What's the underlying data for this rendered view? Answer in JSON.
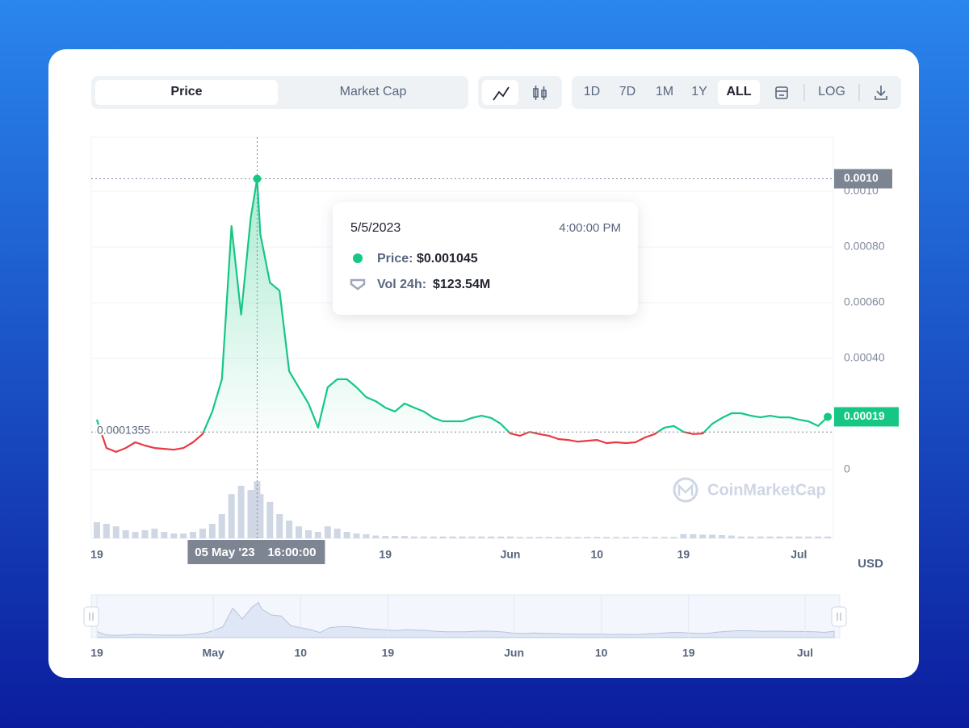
{
  "toolbar": {
    "tabs": [
      "Price",
      "Market Cap"
    ],
    "active_tab": 0,
    "ranges": [
      "1D",
      "7D",
      "1M",
      "1Y",
      "ALL"
    ],
    "active_range": 4,
    "log": "LOG"
  },
  "currency": "USD",
  "watermark": "CoinMarketCap",
  "chart_data": {
    "type": "line",
    "x": [
      "2023-04-19",
      "2023-04-20",
      "2023-04-21",
      "2023-04-22",
      "2023-04-23",
      "2023-04-24",
      "2023-04-25",
      "2023-04-26",
      "2023-04-27",
      "2023-04-28",
      "2023-04-29",
      "2023-04-30",
      "2023-05-01",
      "2023-05-02",
      "2023-05-03",
      "2023-05-04",
      "2023-05-05",
      "2023-05-05 16:00",
      "2023-05-06",
      "2023-05-07",
      "2023-05-08",
      "2023-05-09",
      "2023-05-10",
      "2023-05-11",
      "2023-05-12",
      "2023-05-13",
      "2023-05-14",
      "2023-05-15",
      "2023-05-16",
      "2023-05-17",
      "2023-05-18",
      "2023-05-19",
      "2023-05-20",
      "2023-05-21",
      "2023-05-22",
      "2023-05-23",
      "2023-05-24",
      "2023-05-25",
      "2023-05-26",
      "2023-05-27",
      "2023-05-28",
      "2023-05-29",
      "2023-05-30",
      "2023-05-31",
      "2023-06-01",
      "2023-06-02",
      "2023-06-03",
      "2023-06-04",
      "2023-06-05",
      "2023-06-06",
      "2023-06-07",
      "2023-06-08",
      "2023-06-09",
      "2023-06-10",
      "2023-06-11",
      "2023-06-12",
      "2023-06-13",
      "2023-06-14",
      "2023-06-15",
      "2023-06-16",
      "2023-06-17",
      "2023-06-18",
      "2023-06-19",
      "2023-06-20",
      "2023-06-21",
      "2023-06-22",
      "2023-06-23",
      "2023-06-24",
      "2023-06-25",
      "2023-06-26",
      "2023-06-27",
      "2023-06-28",
      "2023-06-29",
      "2023-06-30",
      "2023-07-01",
      "2023-07-02",
      "2023-07-03",
      "2023-07-04"
    ],
    "values": [
      0.00018,
      7.8e-05,
      6.4e-05,
      7.8e-05,
      9.86e-05,
      8.7e-05,
      7.8e-05,
      7.5e-05,
      7.2e-05,
      7.8e-05,
      9.86e-05,
      0.000128,
      0.000209,
      0.000325,
      0.000875,
      0.000557,
      0.000904,
      0.001045,
      0.000846,
      0.000672,
      0.000643,
      0.000354,
      0.000296,
      0.000238,
      0.000151,
      0.000296,
      0.000325,
      0.000325,
      0.000296,
      0.000261,
      0.000246,
      0.000223,
      0.000209,
      0.000238,
      0.000223,
      0.000209,
      0.000186,
      0.000174,
      0.000174,
      0.000174,
      0.000186,
      0.000194,
      0.000186,
      0.000165,
      0.00013,
      0.000122,
      0.000136,
      0.000128,
      0.000122,
      0.00011,
      0.000107,
      0.000101,
      0.000104,
      0.000107,
      9.57e-05,
      9.86e-05,
      9.57e-05,
      9.86e-05,
      0.000116,
      0.000128,
      0.000151,
      0.000157,
      0.000136,
      0.000128,
      0.00013,
      0.000165,
      0.000186,
      0.000203,
      0.000203,
      0.000194,
      0.000188,
      0.000194,
      0.000188,
      0.000188,
      0.00018,
      0.000174,
      0.000157,
      0.00019
    ],
    "volume": [
      35,
      31.5,
      26,
      17.5,
      14,
      17.5,
      21,
      14,
      10.5,
      10.5,
      14,
      21,
      31.5,
      52.5,
      96,
      114,
      105,
      123.54,
      96,
      79,
      52.5,
      38.5,
      26,
      17.5,
      14,
      26,
      21,
      14,
      10.5,
      8.8,
      6,
      5,
      5,
      5,
      4,
      4,
      4,
      4,
      4,
      4,
      4,
      4,
      4,
      4,
      4,
      3,
      3,
      3,
      3,
      3,
      3,
      3,
      3,
      3,
      3,
      3,
      3,
      3,
      3,
      3,
      3,
      3,
      9,
      9,
      8,
      8,
      7,
      6,
      4,
      4,
      4,
      4,
      4,
      4,
      4,
      4,
      4,
      4
    ],
    "up_color": "#16c784",
    "down_color": "#ea3943",
    "volume_color": "#cfd6e4",
    "baseline": 0.0001355,
    "xlim": [
      "2023-04-18 10:00",
      "2023-07-04 14:00"
    ],
    "ylim": [
      0,
      0.0012
    ],
    "y2lim": [
      0,
      140
    ],
    "yticks": [
      0,
      {
        "value": 0.0004,
        "label": "0.00040"
      },
      {
        "value": 0.0006,
        "label": "0.00060"
      },
      {
        "value": 0.0008,
        "label": "0.00080"
      },
      {
        "value": 0.001,
        "label": "0.0010"
      }
    ],
    "xticks": [
      {
        "value": "2023-04-19",
        "label": "19"
      },
      {
        "value": "2023-05-19",
        "label": "19"
      },
      {
        "value": "2023-06-01",
        "label": "Jun"
      },
      {
        "value": "2023-06-10",
        "label": "10"
      },
      {
        "value": "2023-06-19",
        "label": "19"
      },
      {
        "value": "2023-07-01",
        "label": "Jul"
      }
    ],
    "navigator_xticks": [
      {
        "value": "2023-04-19",
        "label": "19"
      },
      {
        "value": "2023-05-01",
        "label": "May"
      },
      {
        "value": "2023-05-10",
        "label": "10"
      },
      {
        "value": "2023-05-19",
        "label": "19"
      },
      {
        "value": "2023-06-01",
        "label": "Jun"
      },
      {
        "value": "2023-06-10",
        "label": "10"
      },
      {
        "value": "2023-06-19",
        "label": "19"
      },
      {
        "value": "2023-07-01",
        "label": "Jul"
      }
    ],
    "grid": true,
    "hover": {
      "x": "2023-05-05 16:00",
      "price_badge": "0.0010",
      "time_day": "05 May '23",
      "time_clock": "16:00:00",
      "date": "5/5/2023",
      "clock": "4:00:00 PM",
      "price_name": "Price:",
      "price": "$0.001045",
      "volume_name": "Vol 24h:",
      "volume": "$123.54M"
    }
  }
}
